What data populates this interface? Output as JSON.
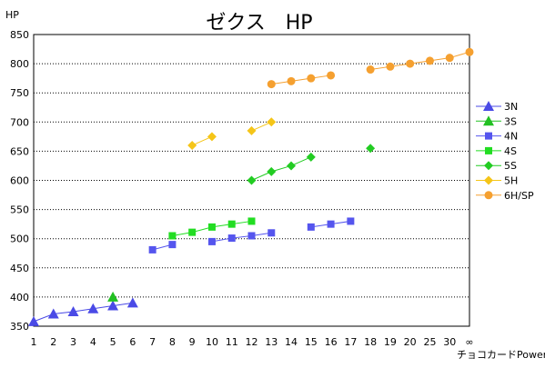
{
  "chart_data": {
    "type": "line",
    "title": "ゼクス　HP",
    "ylabel": "HP",
    "xlabel": "チョコカードPower",
    "ylim": [
      350,
      850
    ],
    "yticks": [
      350,
      400,
      450,
      500,
      550,
      600,
      650,
      700,
      750,
      800,
      850
    ],
    "categories": [
      "1",
      "2",
      "3",
      "4",
      "5",
      "6",
      "7",
      "8",
      "9",
      "10",
      "11",
      "12",
      "13",
      "14",
      "15",
      "16",
      "17",
      "18",
      "19",
      "20",
      "25",
      "30",
      "∞"
    ],
    "grid": true,
    "legend_position": "right",
    "series": [
      {
        "name": "3N",
        "color": "#4a4ae6",
        "marker": "triangle",
        "segments": [
          [
            [
              1,
              358
            ],
            [
              2,
              371
            ],
            [
              3,
              375
            ],
            [
              4,
              380
            ],
            [
              5,
              385
            ],
            [
              6,
              390
            ]
          ]
        ]
      },
      {
        "name": "3S",
        "color": "#22c022",
        "marker": "triangle",
        "segments": [
          [
            [
              5,
              400
            ]
          ]
        ]
      },
      {
        "name": "4N",
        "color": "#5555ee",
        "marker": "square",
        "segments": [
          [
            [
              7,
              481
            ],
            [
              8,
              490
            ]
          ],
          [
            [
              10,
              495
            ],
            [
              11,
              501
            ],
            [
              12,
              505
            ],
            [
              13,
              510
            ]
          ],
          [
            [
              15,
              520
            ],
            [
              16,
              525
            ],
            [
              17,
              530
            ]
          ]
        ]
      },
      {
        "name": "4S",
        "color": "#22dd22",
        "marker": "square",
        "segments": [
          [
            [
              8,
              505
            ],
            [
              9,
              511
            ],
            [
              10,
              520
            ],
            [
              11,
              525
            ],
            [
              12,
              530
            ]
          ]
        ]
      },
      {
        "name": "5S",
        "color": "#22cc22",
        "marker": "diamond",
        "segments": [
          [
            [
              12,
              600
            ],
            [
              13,
              615
            ],
            [
              14,
              625
            ],
            [
              15,
              640
            ]
          ],
          [
            [
              18,
              655
            ]
          ]
        ]
      },
      {
        "name": "5H",
        "color": "#f5c518",
        "marker": "diamond",
        "segments": [
          [
            [
              9,
              660
            ],
            [
              10,
              675
            ]
          ],
          [
            [
              12,
              685
            ],
            [
              13,
              700
            ]
          ]
        ]
      },
      {
        "name": "6H/SP",
        "color": "#f5a030",
        "marker": "circle",
        "segments": [
          [
            [
              13,
              765
            ],
            [
              14,
              770
            ],
            [
              15,
              775
            ],
            [
              16,
              780
            ]
          ],
          [
            [
              18,
              790
            ],
            [
              19,
              795
            ],
            [
              20,
              800
            ],
            [
              25,
              805
            ],
            [
              30,
              810
            ],
            [
              31,
              820
            ]
          ]
        ]
      }
    ]
  }
}
